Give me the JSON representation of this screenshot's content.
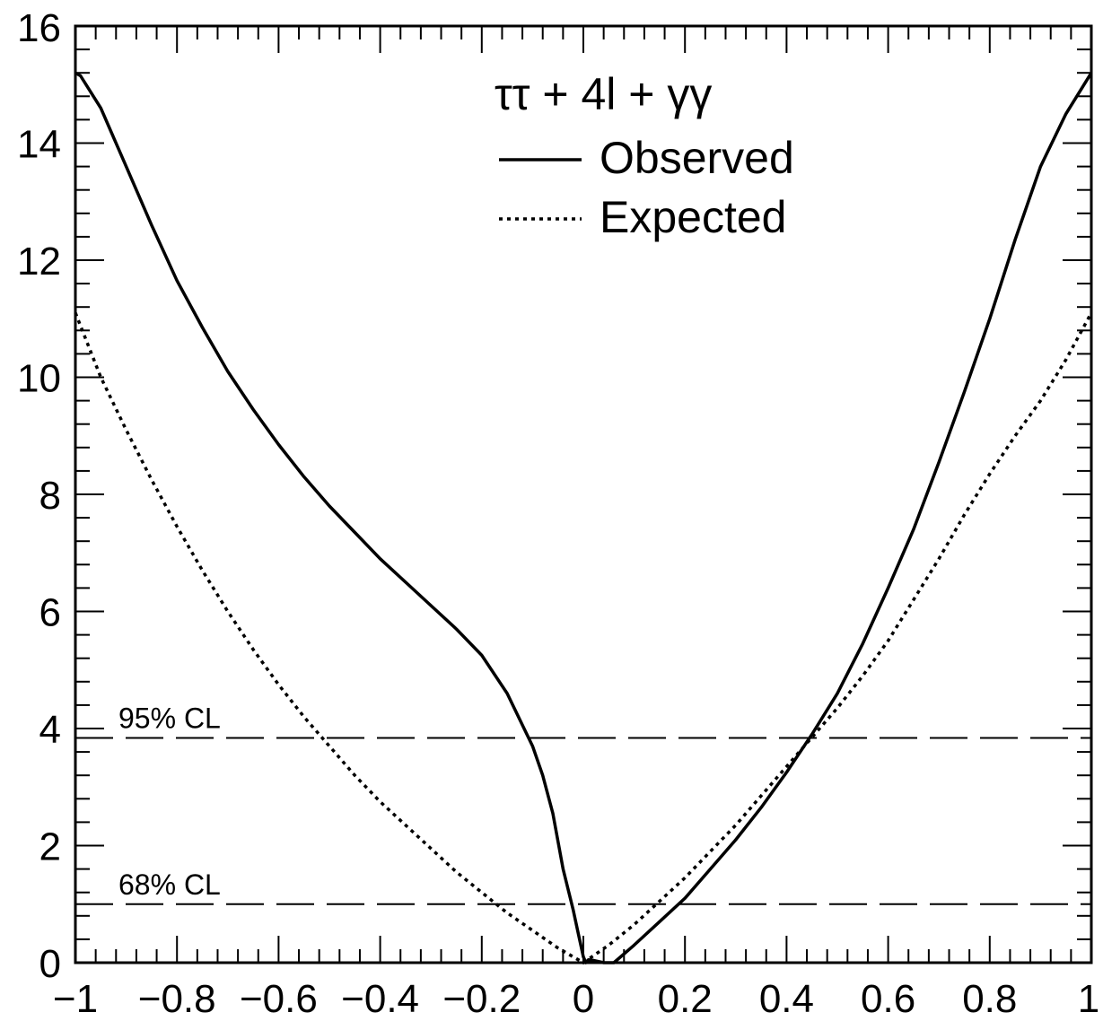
{
  "chart_data": {
    "type": "line",
    "xlim": [
      -1,
      1
    ],
    "ylim": [
      0,
      16
    ],
    "x_ticks": [
      -1,
      -0.8,
      -0.6,
      -0.4,
      -0.2,
      0,
      0.2,
      0.4,
      0.6,
      0.8,
      1
    ],
    "x_tick_labels": [
      "−1",
      "−0.8",
      "−0.6",
      "−0.4",
      "−0.2",
      "0",
      "0.2",
      "0.4",
      "0.6",
      "0.8",
      "1"
    ],
    "y_ticks": [
      0,
      2,
      4,
      6,
      8,
      10,
      12,
      14,
      16
    ],
    "y_tick_labels": [
      "0",
      "2",
      "4",
      "6",
      "8",
      "10",
      "12",
      "14",
      "16"
    ],
    "legend": {
      "title": "ττ + 4l + γγ",
      "placement": "top-center"
    },
    "reference_lines": [
      {
        "label": "95% CL",
        "y": 3.84
      },
      {
        "label": "68% CL",
        "y": 1.0
      }
    ],
    "series": [
      {
        "name": "Observed",
        "style": "solid",
        "x": [
          -1.0,
          -0.99,
          -0.95,
          -0.9,
          -0.85,
          -0.8,
          -0.75,
          -0.7,
          -0.65,
          -0.6,
          -0.55,
          -0.5,
          -0.45,
          -0.4,
          -0.35,
          -0.3,
          -0.25,
          -0.2,
          -0.15,
          -0.1,
          -0.08,
          -0.06,
          -0.04,
          -0.02,
          -0.01,
          0.0,
          0.005,
          0.01,
          0.02,
          0.04,
          0.06,
          0.1,
          0.15,
          0.2,
          0.25,
          0.3,
          0.35,
          0.4,
          0.45,
          0.5,
          0.55,
          0.6,
          0.65,
          0.7,
          0.75,
          0.8,
          0.85,
          0.9,
          0.95,
          1.0
        ],
        "y": [
          15.2,
          15.15,
          14.6,
          13.6,
          12.6,
          11.65,
          10.85,
          10.1,
          9.45,
          8.85,
          8.3,
          7.8,
          7.35,
          6.9,
          6.5,
          6.1,
          5.7,
          5.25,
          4.6,
          3.7,
          3.2,
          2.55,
          1.6,
          0.9,
          0.5,
          0.1,
          0.0,
          0.05,
          0.04,
          0.0,
          0.0,
          0.3,
          0.7,
          1.1,
          1.6,
          2.1,
          2.65,
          3.25,
          3.9,
          4.6,
          5.45,
          6.4,
          7.4,
          8.55,
          9.75,
          11.0,
          12.35,
          13.6,
          14.5,
          15.2
        ]
      },
      {
        "name": "Expected",
        "style": "dotted",
        "x": [
          -1.0,
          -0.95,
          -0.9,
          -0.85,
          -0.8,
          -0.75,
          -0.7,
          -0.65,
          -0.6,
          -0.55,
          -0.5,
          -0.45,
          -0.4,
          -0.35,
          -0.3,
          -0.25,
          -0.2,
          -0.15,
          -0.1,
          -0.05,
          0.0,
          0.05,
          0.1,
          0.15,
          0.2,
          0.25,
          0.3,
          0.35,
          0.4,
          0.45,
          0.5,
          0.55,
          0.6,
          0.65,
          0.7,
          0.75,
          0.8,
          0.85,
          0.9,
          0.95,
          1.0
        ],
        "y": [
          11.1,
          10.0,
          9.1,
          8.25,
          7.45,
          6.7,
          6.0,
          5.35,
          4.75,
          4.2,
          3.7,
          3.2,
          2.75,
          2.35,
          1.95,
          1.55,
          1.2,
          0.85,
          0.55,
          0.25,
          0.0,
          0.3,
          0.65,
          1.05,
          1.45,
          1.9,
          2.35,
          2.85,
          3.35,
          3.85,
          4.35,
          4.9,
          5.5,
          6.2,
          6.9,
          7.65,
          8.35,
          9.0,
          9.6,
          10.3,
          11.1
        ]
      }
    ]
  }
}
